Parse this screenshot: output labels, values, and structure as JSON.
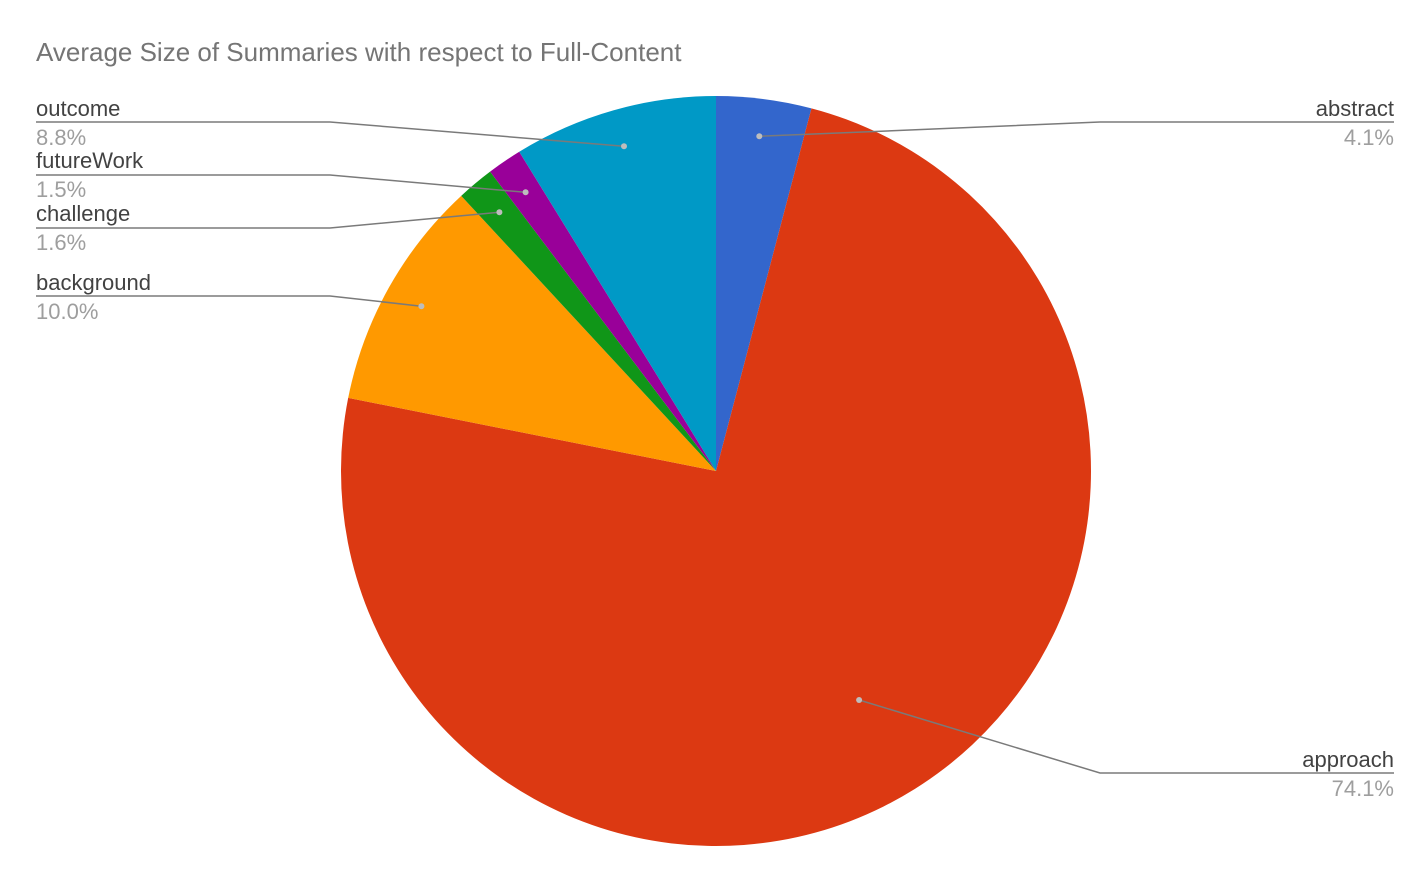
{
  "chart_data": {
    "type": "pie",
    "title": "Average Size of Summaries with respect to Full-Content",
    "start_angle_deg": 0,
    "direction": "clockwise",
    "legend": "labels with leader lines",
    "slices": [
      {
        "name": "abstract",
        "value": 4.1,
        "label": "4.1%",
        "color": "#3366cc"
      },
      {
        "name": "approach",
        "value": 74.1,
        "label": "74.1%",
        "color": "#dc3912"
      },
      {
        "name": "background",
        "value": 10.0,
        "label": "10.0%",
        "color": "#ff9900"
      },
      {
        "name": "challenge",
        "value": 1.6,
        "label": "1.6%",
        "color": "#109618"
      },
      {
        "name": "futureWork",
        "value": 1.5,
        "label": "1.5%",
        "color": "#990099"
      },
      {
        "name": "outcome",
        "value": 8.8,
        "label": "8.8%",
        "color": "#0099c6"
      }
    ]
  }
}
